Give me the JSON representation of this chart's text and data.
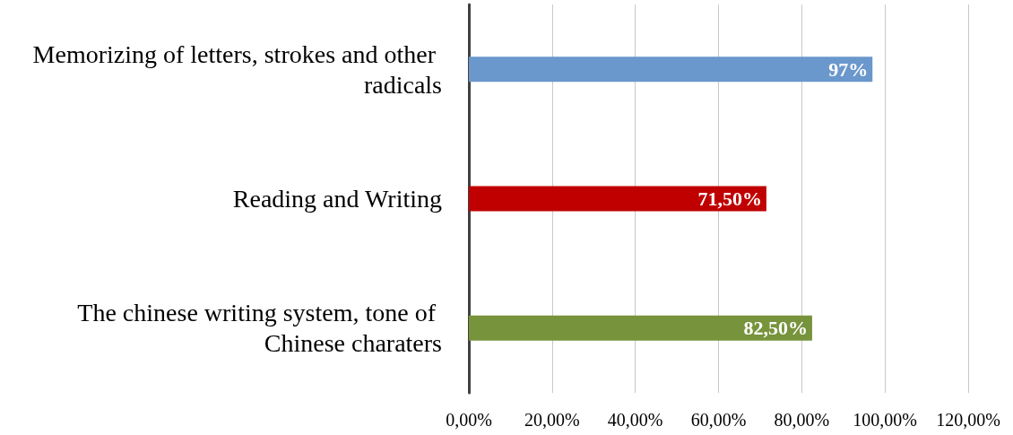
{
  "chart_data": {
    "type": "bar",
    "orientation": "horizontal",
    "categories": [
      "Memorizing of letters, strokes and other radicals",
      "Reading and Writing",
      "The chinese writing system, tone of Chinese charaters"
    ],
    "values": [
      97,
      71.5,
      82.5
    ],
    "colors": [
      "#6a97cc",
      "#c00000",
      "#77933c"
    ],
    "value_labels": [
      "97%",
      "71,50%",
      "82,50%"
    ],
    "xlim": [
      0,
      120
    ],
    "xticks": [
      {
        "value": 0,
        "label": "0,00%"
      },
      {
        "value": 20,
        "label": "20,00%"
      },
      {
        "value": 40,
        "label": "40,00%"
      },
      {
        "value": 60,
        "label": "60,00%"
      },
      {
        "value": 80,
        "label": "80,00%"
      },
      {
        "value": 100,
        "label": "100,00%"
      },
      {
        "value": 120,
        "label": "120,00%"
      }
    ],
    "grid": "x"
  }
}
